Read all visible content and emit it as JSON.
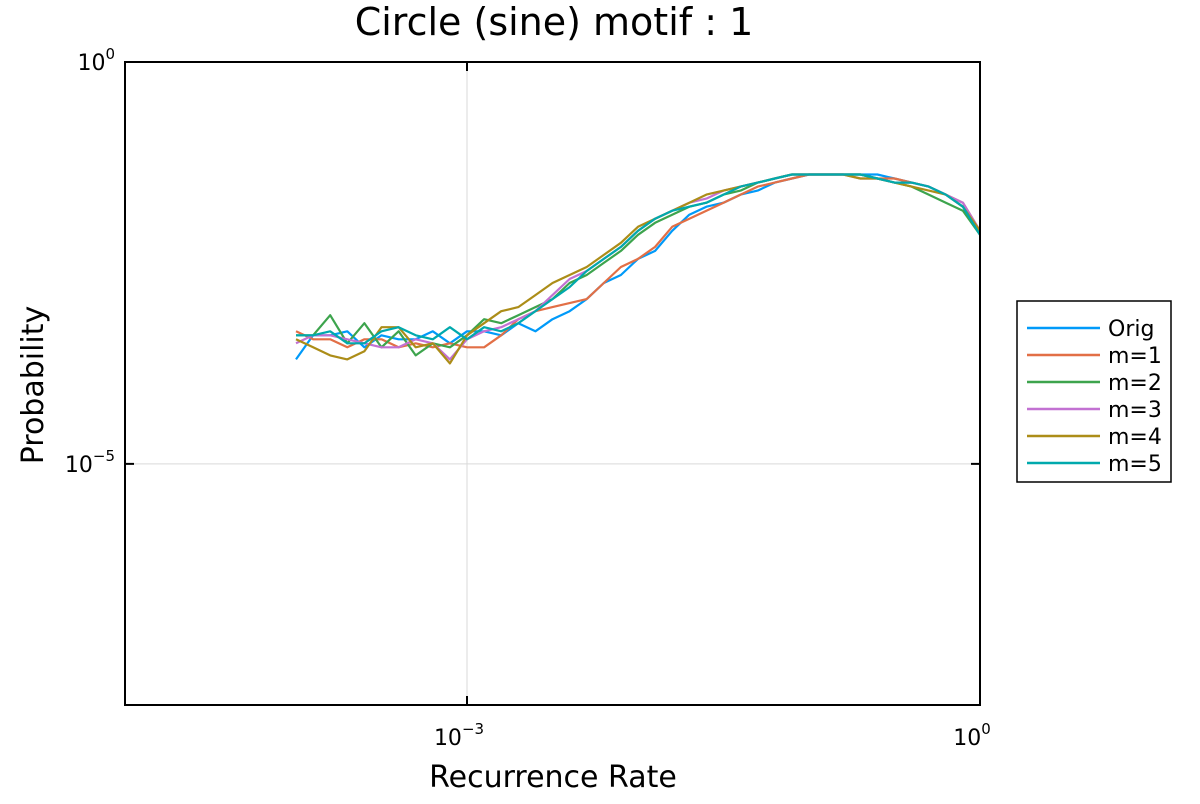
{
  "chart_data": {
    "type": "line",
    "title": "Circle (sine) motif : 1",
    "xlabel": "Recurrence Rate",
    "ylabel": "Probability",
    "xscale": "log10",
    "yscale": "log10",
    "xlim_log10": [
      -5,
      0
    ],
    "ylim_log10": [
      -8,
      0
    ],
    "xticks": [
      {
        "base": "10",
        "exp": "−3",
        "log10": -3
      },
      {
        "base": "10",
        "exp": "0",
        "log10": 0
      }
    ],
    "yticks": [
      {
        "base": "10",
        "exp": "0",
        "log10": 0
      },
      {
        "base": "10",
        "exp": "−5",
        "log10": -5
      }
    ],
    "grid": true,
    "legend_position": "outer-right",
    "series": [
      {
        "name": "Orig",
        "color": "#009af9",
        "x_log10": [
          -4.0,
          -3.9,
          -3.8,
          -3.7,
          -3.6,
          -3.5,
          -3.4,
          -3.3,
          -3.2,
          -3.1,
          -3.0,
          -2.9,
          -2.8,
          -2.7,
          -2.6,
          -2.5,
          -2.4,
          -2.3,
          -2.2,
          -2.1,
          -2.0,
          -1.9,
          -1.8,
          -1.7,
          -1.6,
          -1.5,
          -1.4,
          -1.3,
          -1.2,
          -1.1,
          -1.0,
          -0.9,
          -0.8,
          -0.7,
          -0.6,
          -0.5,
          -0.4,
          -0.3,
          -0.2,
          -0.1,
          0.0
        ],
        "y_log10": [
          -3.7,
          -3.4,
          -3.4,
          -3.35,
          -3.55,
          -3.4,
          -3.45,
          -3.45,
          -3.35,
          -3.5,
          -3.35,
          -3.35,
          -3.4,
          -3.25,
          -3.35,
          -3.2,
          -3.1,
          -2.95,
          -2.75,
          -2.65,
          -2.45,
          -2.35,
          -2.1,
          -1.9,
          -1.8,
          -1.75,
          -1.65,
          -1.6,
          -1.5,
          -1.45,
          -1.4,
          -1.4,
          -1.4,
          -1.4,
          -1.4,
          -1.45,
          -1.5,
          -1.55,
          -1.65,
          -1.8,
          -2.15
        ]
      },
      {
        "name": "m=1",
        "color": "#e26f46",
        "x_log10": [
          -4.0,
          -3.9,
          -3.8,
          -3.7,
          -3.6,
          -3.5,
          -3.4,
          -3.3,
          -3.2,
          -3.1,
          -3.0,
          -2.9,
          -2.8,
          -2.7,
          -2.6,
          -2.5,
          -2.4,
          -2.3,
          -2.2,
          -2.1,
          -2.0,
          -1.9,
          -1.8,
          -1.7,
          -1.6,
          -1.5,
          -1.4,
          -1.3,
          -1.2,
          -1.1,
          -1.0,
          -0.9,
          -0.8,
          -0.7,
          -0.6,
          -0.5,
          -0.4,
          -0.3,
          -0.2,
          -0.1,
          0.0
        ],
        "y_log10": [
          -3.35,
          -3.45,
          -3.45,
          -3.55,
          -3.45,
          -3.45,
          -3.55,
          -3.5,
          -3.55,
          -3.5,
          -3.55,
          -3.55,
          -3.4,
          -3.2,
          -3.1,
          -3.05,
          -3.0,
          -2.95,
          -2.75,
          -2.55,
          -2.45,
          -2.3,
          -2.05,
          -1.95,
          -1.85,
          -1.75,
          -1.65,
          -1.55,
          -1.5,
          -1.45,
          -1.4,
          -1.4,
          -1.4,
          -1.4,
          -1.45,
          -1.45,
          -1.5,
          -1.55,
          -1.65,
          -1.75,
          -2.1
        ]
      },
      {
        "name": "m=2",
        "color": "#3da44d",
        "x_log10": [
          -4.0,
          -3.9,
          -3.8,
          -3.7,
          -3.6,
          -3.5,
          -3.4,
          -3.3,
          -3.2,
          -3.1,
          -3.0,
          -2.9,
          -2.8,
          -2.7,
          -2.6,
          -2.5,
          -2.4,
          -2.3,
          -2.2,
          -2.1,
          -2.0,
          -1.9,
          -1.8,
          -1.7,
          -1.6,
          -1.5,
          -1.4,
          -1.3,
          -1.2,
          -1.1,
          -1.0,
          -0.9,
          -0.8,
          -0.7,
          -0.6,
          -0.5,
          -0.4,
          -0.3,
          -0.2,
          -0.1,
          0.0
        ],
        "y_log10": [
          -3.4,
          -3.4,
          -3.15,
          -3.5,
          -3.25,
          -3.55,
          -3.35,
          -3.65,
          -3.5,
          -3.55,
          -3.4,
          -3.2,
          -3.25,
          -3.15,
          -3.05,
          -2.95,
          -2.75,
          -2.65,
          -2.5,
          -2.35,
          -2.15,
          -2.0,
          -1.9,
          -1.8,
          -1.75,
          -1.65,
          -1.6,
          -1.5,
          -1.45,
          -1.4,
          -1.4,
          -1.4,
          -1.4,
          -1.4,
          -1.45,
          -1.5,
          -1.55,
          -1.65,
          -1.75,
          -1.85,
          -2.15
        ]
      },
      {
        "name": "m=3",
        "color": "#c271d2",
        "x_log10": [
          -4.0,
          -3.9,
          -3.8,
          -3.7,
          -3.6,
          -3.5,
          -3.4,
          -3.3,
          -3.2,
          -3.1,
          -3.0,
          -2.9,
          -2.8,
          -2.7,
          -2.6,
          -2.5,
          -2.4,
          -2.3,
          -2.2,
          -2.1,
          -2.0,
          -1.9,
          -1.8,
          -1.7,
          -1.6,
          -1.5,
          -1.4,
          -1.3,
          -1.2,
          -1.1,
          -1.0,
          -0.9,
          -0.8,
          -0.7,
          -0.6,
          -0.5,
          -0.4,
          -0.3,
          -0.2,
          -0.1,
          0.0
        ],
        "y_log10": [
          -3.5,
          -3.4,
          -3.4,
          -3.45,
          -3.5,
          -3.55,
          -3.55,
          -3.45,
          -3.5,
          -3.7,
          -3.45,
          -3.35,
          -3.3,
          -3.2,
          -3.1,
          -2.9,
          -2.7,
          -2.6,
          -2.45,
          -2.3,
          -2.1,
          -1.95,
          -1.85,
          -1.75,
          -1.7,
          -1.6,
          -1.55,
          -1.5,
          -1.45,
          -1.4,
          -1.4,
          -1.4,
          -1.4,
          -1.45,
          -1.45,
          -1.5,
          -1.5,
          -1.55,
          -1.65,
          -1.75,
          -2.1
        ]
      },
      {
        "name": "m=4",
        "color": "#ac8d18",
        "x_log10": [
          -4.0,
          -3.9,
          -3.8,
          -3.7,
          -3.6,
          -3.5,
          -3.4,
          -3.3,
          -3.2,
          -3.1,
          -3.0,
          -2.9,
          -2.8,
          -2.7,
          -2.6,
          -2.5,
          -2.4,
          -2.3,
          -2.2,
          -2.1,
          -2.0,
          -1.9,
          -1.8,
          -1.7,
          -1.6,
          -1.5,
          -1.4,
          -1.3,
          -1.2,
          -1.1,
          -1.0,
          -0.9,
          -0.8,
          -0.7,
          -0.6,
          -0.5,
          -0.4,
          -0.3,
          -0.2,
          -0.1,
          0.0
        ],
        "y_log10": [
          -3.45,
          -3.55,
          -3.65,
          -3.7,
          -3.6,
          -3.3,
          -3.3,
          -3.55,
          -3.5,
          -3.75,
          -3.4,
          -3.25,
          -3.1,
          -3.05,
          -2.9,
          -2.75,
          -2.65,
          -2.55,
          -2.4,
          -2.25,
          -2.05,
          -1.95,
          -1.85,
          -1.75,
          -1.65,
          -1.6,
          -1.55,
          -1.5,
          -1.45,
          -1.4,
          -1.4,
          -1.4,
          -1.4,
          -1.45,
          -1.45,
          -1.5,
          -1.55,
          -1.6,
          -1.65,
          -1.8,
          -2.1
        ]
      },
      {
        "name": "m=5",
        "color": "#00a9ad",
        "x_log10": [
          -4.0,
          -3.9,
          -3.8,
          -3.7,
          -3.6,
          -3.5,
          -3.4,
          -3.3,
          -3.2,
          -3.1,
          -3.0,
          -2.9,
          -2.8,
          -2.7,
          -2.6,
          -2.5,
          -2.4,
          -2.3,
          -2.2,
          -2.1,
          -2.0,
          -1.9,
          -1.8,
          -1.7,
          -1.6,
          -1.5,
          -1.4,
          -1.3,
          -1.2,
          -1.1,
          -1.0,
          -0.9,
          -0.8,
          -0.7,
          -0.6,
          -0.5,
          -0.4,
          -0.3,
          -0.2,
          -0.1,
          0.0
        ],
        "y_log10": [
          -3.4,
          -3.4,
          -3.35,
          -3.5,
          -3.5,
          -3.35,
          -3.3,
          -3.4,
          -3.45,
          -3.3,
          -3.45,
          -3.3,
          -3.35,
          -3.25,
          -3.1,
          -2.95,
          -2.8,
          -2.6,
          -2.45,
          -2.3,
          -2.1,
          -1.95,
          -1.85,
          -1.8,
          -1.75,
          -1.65,
          -1.55,
          -1.5,
          -1.45,
          -1.4,
          -1.4,
          -1.4,
          -1.4,
          -1.4,
          -1.45,
          -1.5,
          -1.5,
          -1.55,
          -1.65,
          -1.8,
          -2.15
        ]
      }
    ]
  }
}
